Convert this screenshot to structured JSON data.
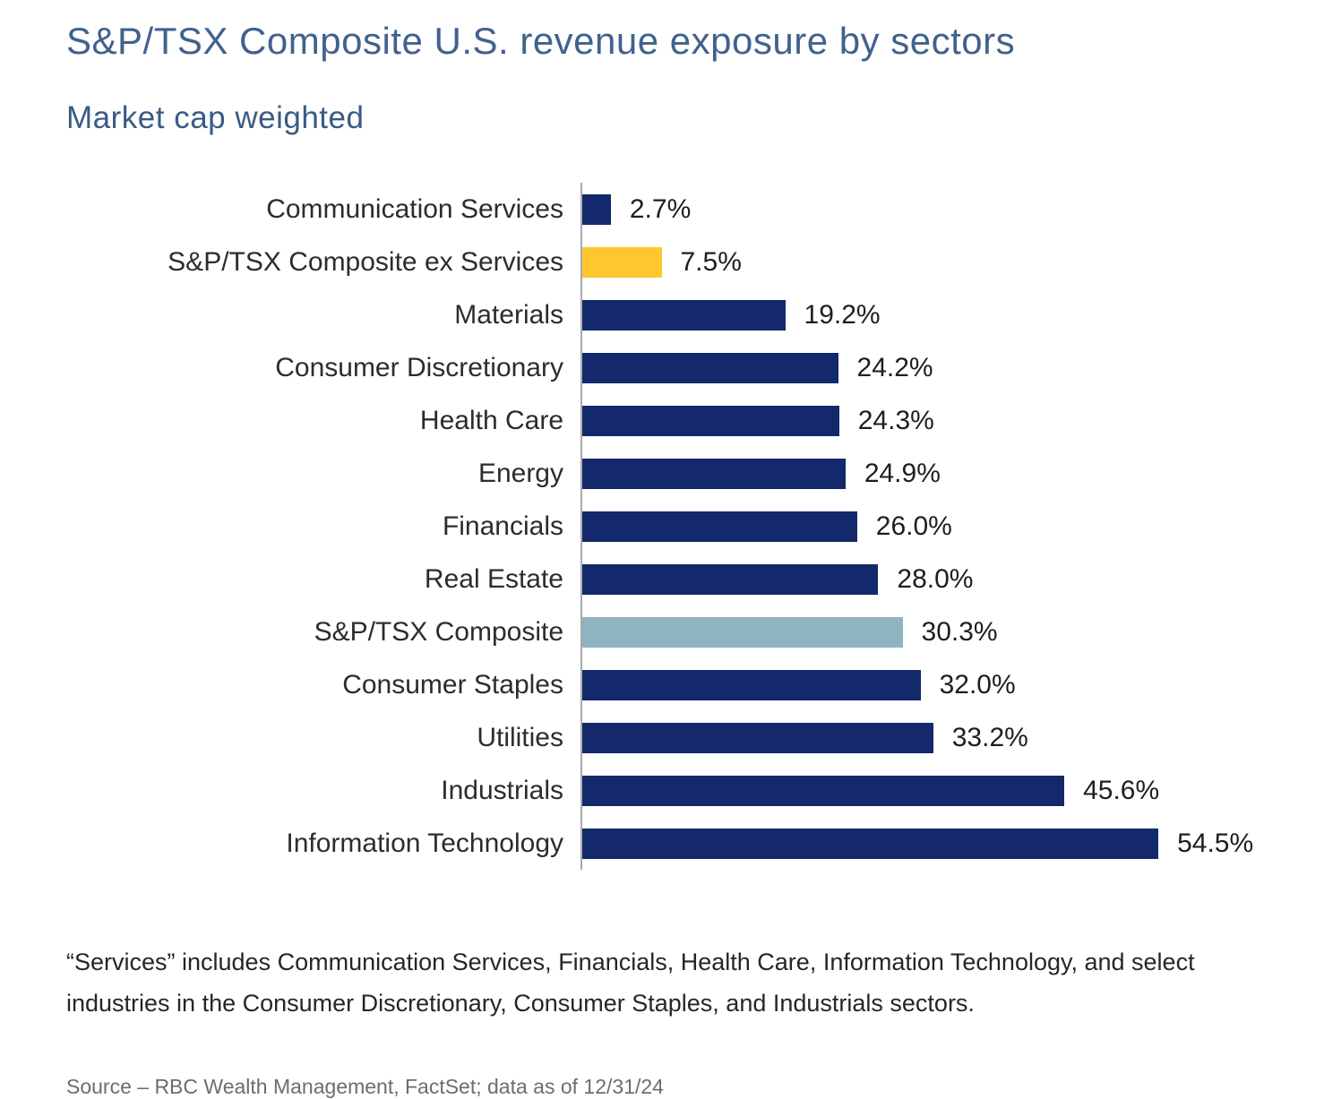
{
  "header": {
    "title": "S&P/TSX Composite U.S. revenue exposure by sectors",
    "subtitle": "Market cap weighted"
  },
  "chart_data": {
    "type": "bar",
    "orientation": "horizontal",
    "title": "S&P/TSX Composite U.S. revenue exposure by sectors",
    "subtitle": "Market cap weighted",
    "xlabel": "",
    "ylabel": "",
    "xlim": [
      0,
      60
    ],
    "grid": false,
    "legend": "none",
    "value_suffix": "%",
    "categories": [
      "Communication Services",
      "S&P/TSX Composite ex Services",
      "Materials",
      "Consumer Discretionary",
      "Health Care",
      "Energy",
      "Financials",
      "Real Estate",
      "S&P/TSX Composite",
      "Consumer Staples",
      "Utilities",
      "Industrials",
      "Information Technology"
    ],
    "values": [
      2.7,
      7.5,
      19.2,
      24.2,
      24.3,
      24.9,
      26.0,
      28.0,
      30.3,
      32.0,
      33.2,
      45.6,
      54.5
    ],
    "value_labels": [
      "2.7%",
      "7.5%",
      "19.2%",
      "24.2%",
      "24.3%",
      "24.9%",
      "26.0%",
      "28.0%",
      "30.3%",
      "32.0%",
      "33.2%",
      "45.6%",
      "54.5%"
    ],
    "bar_colors": [
      "#13296B",
      "#FFC62E",
      "#13296B",
      "#13296B",
      "#13296B",
      "#13296B",
      "#13296B",
      "#13296B",
      "#8EB3C1",
      "#13296B",
      "#13296B",
      "#13296B",
      "#13296B"
    ],
    "colors": {
      "default_bar": "#13296B",
      "highlight_ex_services": "#FFC62E",
      "highlight_composite": "#8EB3C1",
      "axis_line": "#A8AAAD",
      "title_text": "#41618E",
      "label_text": "#2D2C2B"
    }
  },
  "footnote": "“Services” includes Communication Services, Financials, Health Care, Information Technology, and select industries in the Consumer Discretionary, Consumer Staples, and Industrials sectors.",
  "source": "Source – RBC Wealth Management, FactSet; data as of 12/31/24"
}
